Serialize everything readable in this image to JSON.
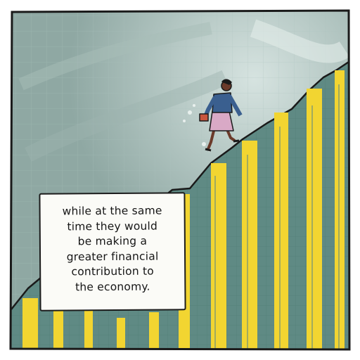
{
  "panel": {
    "caption": "while at the same\ntime they would\nbe making a\ngreater financial\ncontribution to\nthe economy."
  },
  "illustration": {
    "subject": "woman climbing rising bar chart",
    "bar_count": 11,
    "colors": {
      "background": "#8fa8a3",
      "background_light": "#c9d8d4",
      "chart_grid": "#5f8a84",
      "bars": "#f2d531",
      "ink": "#1a1a1a",
      "jacket": "#3a5f8f",
      "skirt": "#d9a9c6",
      "skin": "#6b3a2a",
      "bag": "#c8553d"
    }
  }
}
